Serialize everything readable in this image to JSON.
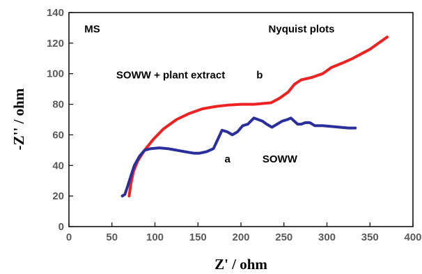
{
  "chart_data": {
    "type": "line",
    "title": "Nyquist plots",
    "xlabel": "Z' / ohm",
    "ylabel": "-Z'' / ohm",
    "xlim": [
      0,
      400
    ],
    "ylim": [
      0,
      140
    ],
    "xticks": [
      0,
      50,
      100,
      150,
      200,
      250,
      300,
      350,
      400
    ],
    "yticks": [
      0,
      20,
      40,
      60,
      80,
      100,
      120,
      140
    ],
    "grid": false,
    "legend": "none",
    "annotations": [
      {
        "text": "MS",
        "x": 18,
        "y": 127
      },
      {
        "text": "Nyquist plots",
        "x": 232,
        "y": 127
      },
      {
        "text": "SOWW + plant extract",
        "x": 55,
        "y": 97
      },
      {
        "text": "b",
        "x": 218,
        "y": 97
      },
      {
        "text": "a",
        "x": 181,
        "y": 42
      },
      {
        "text": "SOWW",
        "x": 225,
        "y": 42
      }
    ],
    "series": [
      {
        "name": "SOWW + plant extract",
        "label": "b",
        "color": "#ee2222",
        "x": [
          70,
          72,
          75,
          80,
          88,
          98,
          110,
          125,
          140,
          155,
          170,
          185,
          200,
          215,
          225,
          235,
          245,
          255,
          262,
          270,
          282,
          295,
          305,
          318,
          330,
          340,
          350,
          360,
          370
        ],
        "y": [
          20,
          28,
          36,
          43,
          50,
          57,
          64,
          70,
          74,
          77,
          78.5,
          79.5,
          80,
          80,
          80.5,
          81,
          84,
          88,
          93,
          96,
          97.5,
          100,
          104,
          107,
          110,
          113,
          116,
          120,
          124
        ]
      },
      {
        "name": "SOWW",
        "label": "a",
        "color": "#2b2f9c",
        "x": [
          62,
          65,
          68,
          72,
          76,
          82,
          88,
          95,
          105,
          115,
          125,
          135,
          145,
          152,
          160,
          168,
          173,
          178,
          184,
          190,
          196,
          202,
          208,
          215,
          220,
          225,
          230,
          236,
          242,
          248,
          254,
          258,
          262,
          266,
          270,
          275,
          280,
          286,
          295,
          305,
          315,
          325,
          333
        ],
        "y": [
          20,
          21,
          26,
          33,
          40,
          46,
          50,
          51,
          51.5,
          51,
          50,
          49,
          48,
          48,
          49,
          51,
          57,
          63,
          62,
          60,
          62,
          66,
          67,
          71,
          70,
          69,
          67,
          65,
          67,
          69,
          70,
          71,
          69,
          67,
          67,
          68,
          68,
          66,
          66,
          65.5,
          65,
          64.5,
          64.5
        ]
      }
    ]
  }
}
